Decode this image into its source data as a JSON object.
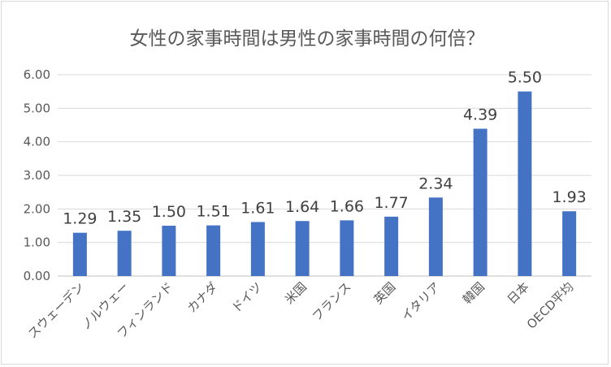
{
  "chart_data": {
    "type": "bar",
    "title": "女性の家事時間は男性の家事時間の何倍？",
    "xlabel": "",
    "ylabel": "",
    "categories": [
      "スウェーデン",
      "ノルウェー",
      "フィンランド",
      "カナダ",
      "ドイツ",
      "米国",
      "フランス",
      "英国",
      "イタリア",
      "韓国",
      "日本",
      "OECD平均"
    ],
    "values": [
      1.29,
      1.35,
      1.5,
      1.51,
      1.61,
      1.64,
      1.66,
      1.77,
      2.34,
      4.39,
      5.5,
      1.93
    ],
    "data_labels": [
      "1.29",
      "1.35",
      "1.50",
      "1.51",
      "1.61",
      "1.64",
      "1.66",
      "1.77",
      "2.34",
      "4.39",
      "5.50",
      "1.93"
    ],
    "yticks": [
      "0.00",
      "1.00",
      "2.00",
      "3.00",
      "4.00",
      "5.00",
      "6.00"
    ],
    "ylim": [
      0,
      6
    ],
    "grid": true,
    "legend": "none",
    "bar_color": "#4472c4"
  }
}
